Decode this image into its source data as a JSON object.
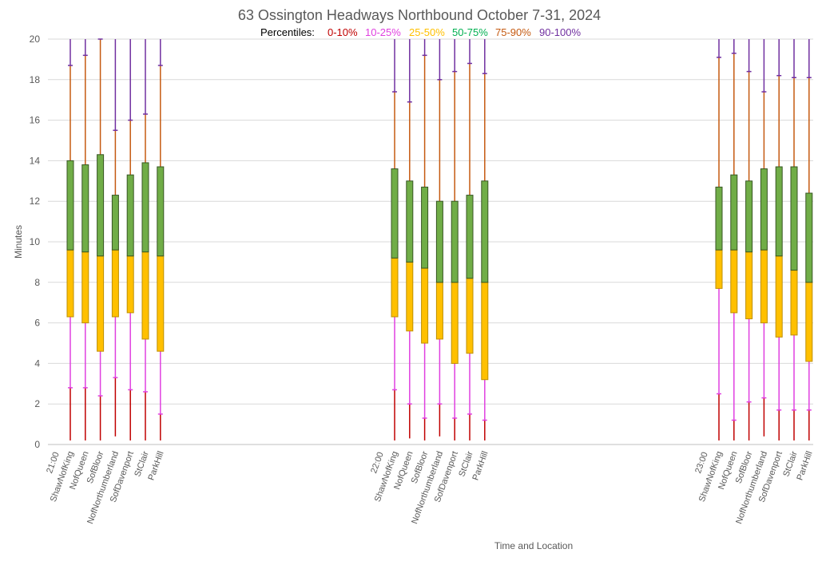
{
  "chart_data": {
    "type": "box",
    "title": "63 Ossington Headways Northbound October 7-31, 2024",
    "legend_prefix": "Percentiles:",
    "legend": [
      {
        "label": "0-10%",
        "color": "#c00000"
      },
      {
        "label": "10-25%",
        "color": "#e040e0"
      },
      {
        "label": "25-50%",
        "color": "#ffc000"
      },
      {
        "label": "50-75%",
        "color": "#00b050"
      },
      {
        "label": "75-90%",
        "color": "#c55a11"
      },
      {
        "label": "90-100%",
        "color": "#7030a0"
      }
    ],
    "box_colors": {
      "lower": "#ffc000",
      "upper": "#70ad47",
      "outline": "#375623",
      "lower_outline": "#bf8f00"
    },
    "ylabel": "Minutes",
    "xlabel": "Time and Location",
    "ylim": [
      0,
      20
    ],
    "yticks": [
      0,
      2,
      4,
      6,
      8,
      10,
      12,
      14,
      16,
      18,
      20
    ],
    "grid": true,
    "groups": [
      {
        "time": "21:00",
        "items": [
          {
            "location": "ShawNofKing",
            "min": 0.2,
            "p10": 2.8,
            "p25": 6.3,
            "median": 9.6,
            "p75": 14.0,
            "p90": 18.7,
            "max": 20
          },
          {
            "location": "NofQueen",
            "min": 0.2,
            "p10": 2.8,
            "p25": 6.0,
            "median": 9.5,
            "p75": 13.8,
            "p90": 19.2,
            "max": 20
          },
          {
            "location": "SofBloor",
            "min": 0.2,
            "p10": 2.4,
            "p25": 4.6,
            "median": 9.3,
            "p75": 14.3,
            "p90": 20.0,
            "max": 20
          },
          {
            "location": "NofNorthumberland",
            "min": 0.4,
            "p10": 3.3,
            "p25": 6.3,
            "median": 9.6,
            "p75": 12.3,
            "p90": 15.5,
            "max": 20
          },
          {
            "location": "SofDavenport",
            "min": 0.2,
            "p10": 2.7,
            "p25": 6.5,
            "median": 9.3,
            "p75": 13.3,
            "p90": 16.0,
            "max": 20
          },
          {
            "location": "StClair",
            "min": 0.2,
            "p10": 2.6,
            "p25": 5.2,
            "median": 9.5,
            "p75": 13.9,
            "p90": 16.3,
            "max": 20
          },
          {
            "location": "ParkHill",
            "min": 0.2,
            "p10": 1.5,
            "p25": 4.6,
            "median": 9.3,
            "p75": 13.7,
            "p90": 18.7,
            "max": 20
          }
        ]
      },
      {
        "time": "22:00",
        "items": [
          {
            "location": "ShawNofKing",
            "min": 0.2,
            "p10": 2.7,
            "p25": 6.3,
            "median": 9.2,
            "p75": 13.6,
            "p90": 17.4,
            "max": 20
          },
          {
            "location": "NofQueen",
            "min": 0.3,
            "p10": 2.0,
            "p25": 5.6,
            "median": 9.0,
            "p75": 13.0,
            "p90": 16.9,
            "max": 20
          },
          {
            "location": "SofBloor",
            "min": 0.2,
            "p10": 1.3,
            "p25": 5.0,
            "median": 8.7,
            "p75": 12.7,
            "p90": 19.2,
            "max": 20
          },
          {
            "location": "NofNorthumberland",
            "min": 0.4,
            "p10": 2.0,
            "p25": 5.2,
            "median": 8.0,
            "p75": 12.0,
            "p90": 18.0,
            "max": 20
          },
          {
            "location": "SofDavenport",
            "min": 0.2,
            "p10": 1.3,
            "p25": 4.0,
            "median": 8.0,
            "p75": 12.0,
            "p90": 18.4,
            "max": 20
          },
          {
            "location": "StClair",
            "min": 0.2,
            "p10": 1.5,
            "p25": 4.5,
            "median": 8.2,
            "p75": 12.3,
            "p90": 18.8,
            "max": 20
          },
          {
            "location": "ParkHill",
            "min": 0.2,
            "p10": 1.2,
            "p25": 3.2,
            "median": 8.0,
            "p75": 13.0,
            "p90": 18.3,
            "max": 20
          }
        ]
      },
      {
        "time": "23:00",
        "items": [
          {
            "location": "ShawNofKing",
            "min": 0.2,
            "p10": 2.5,
            "p25": 7.7,
            "median": 9.6,
            "p75": 12.7,
            "p90": 19.1,
            "max": 20
          },
          {
            "location": "NofQueen",
            "min": 0.2,
            "p10": 1.2,
            "p25": 6.5,
            "median": 9.6,
            "p75": 13.3,
            "p90": 19.3,
            "max": 20
          },
          {
            "location": "SofBloor",
            "min": 0.2,
            "p10": 2.1,
            "p25": 6.2,
            "median": 9.5,
            "p75": 13.0,
            "p90": 18.4,
            "max": 20
          },
          {
            "location": "NofNorthumberland",
            "min": 0.4,
            "p10": 2.3,
            "p25": 6.0,
            "median": 9.6,
            "p75": 13.6,
            "p90": 17.4,
            "max": 20
          },
          {
            "location": "SofDavenport",
            "min": 0.2,
            "p10": 1.7,
            "p25": 5.3,
            "median": 9.3,
            "p75": 13.7,
            "p90": 18.2,
            "max": 20
          },
          {
            "location": "StClair",
            "min": 0.2,
            "p10": 1.7,
            "p25": 5.4,
            "median": 8.6,
            "p75": 13.7,
            "p90": 18.1,
            "max": 20
          },
          {
            "location": "ParkHill",
            "min": 0.2,
            "p10": 1.7,
            "p25": 4.1,
            "median": 8.0,
            "p75": 12.4,
            "p90": 18.1,
            "max": 20
          }
        ]
      }
    ]
  }
}
